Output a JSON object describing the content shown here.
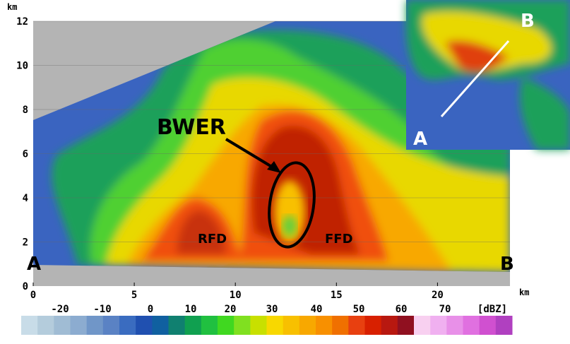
{
  "y_axis": {
    "unit": "km",
    "ticks": [
      0,
      2,
      4,
      6,
      8,
      10,
      12
    ]
  },
  "x_axis": {
    "unit": "km",
    "ticks": [
      0,
      5,
      10,
      15,
      20
    ]
  },
  "annotations": {
    "bwer": "BWER",
    "rfd": "RFD",
    "ffd": "FFD",
    "a": "A",
    "b": "B"
  },
  "inset": {
    "a": "A",
    "b": "B"
  },
  "color_scale": {
    "labels": [
      -20,
      -10,
      0,
      10,
      20,
      30,
      40,
      50,
      60,
      70
    ],
    "unit": "[dBZ]"
  }
}
